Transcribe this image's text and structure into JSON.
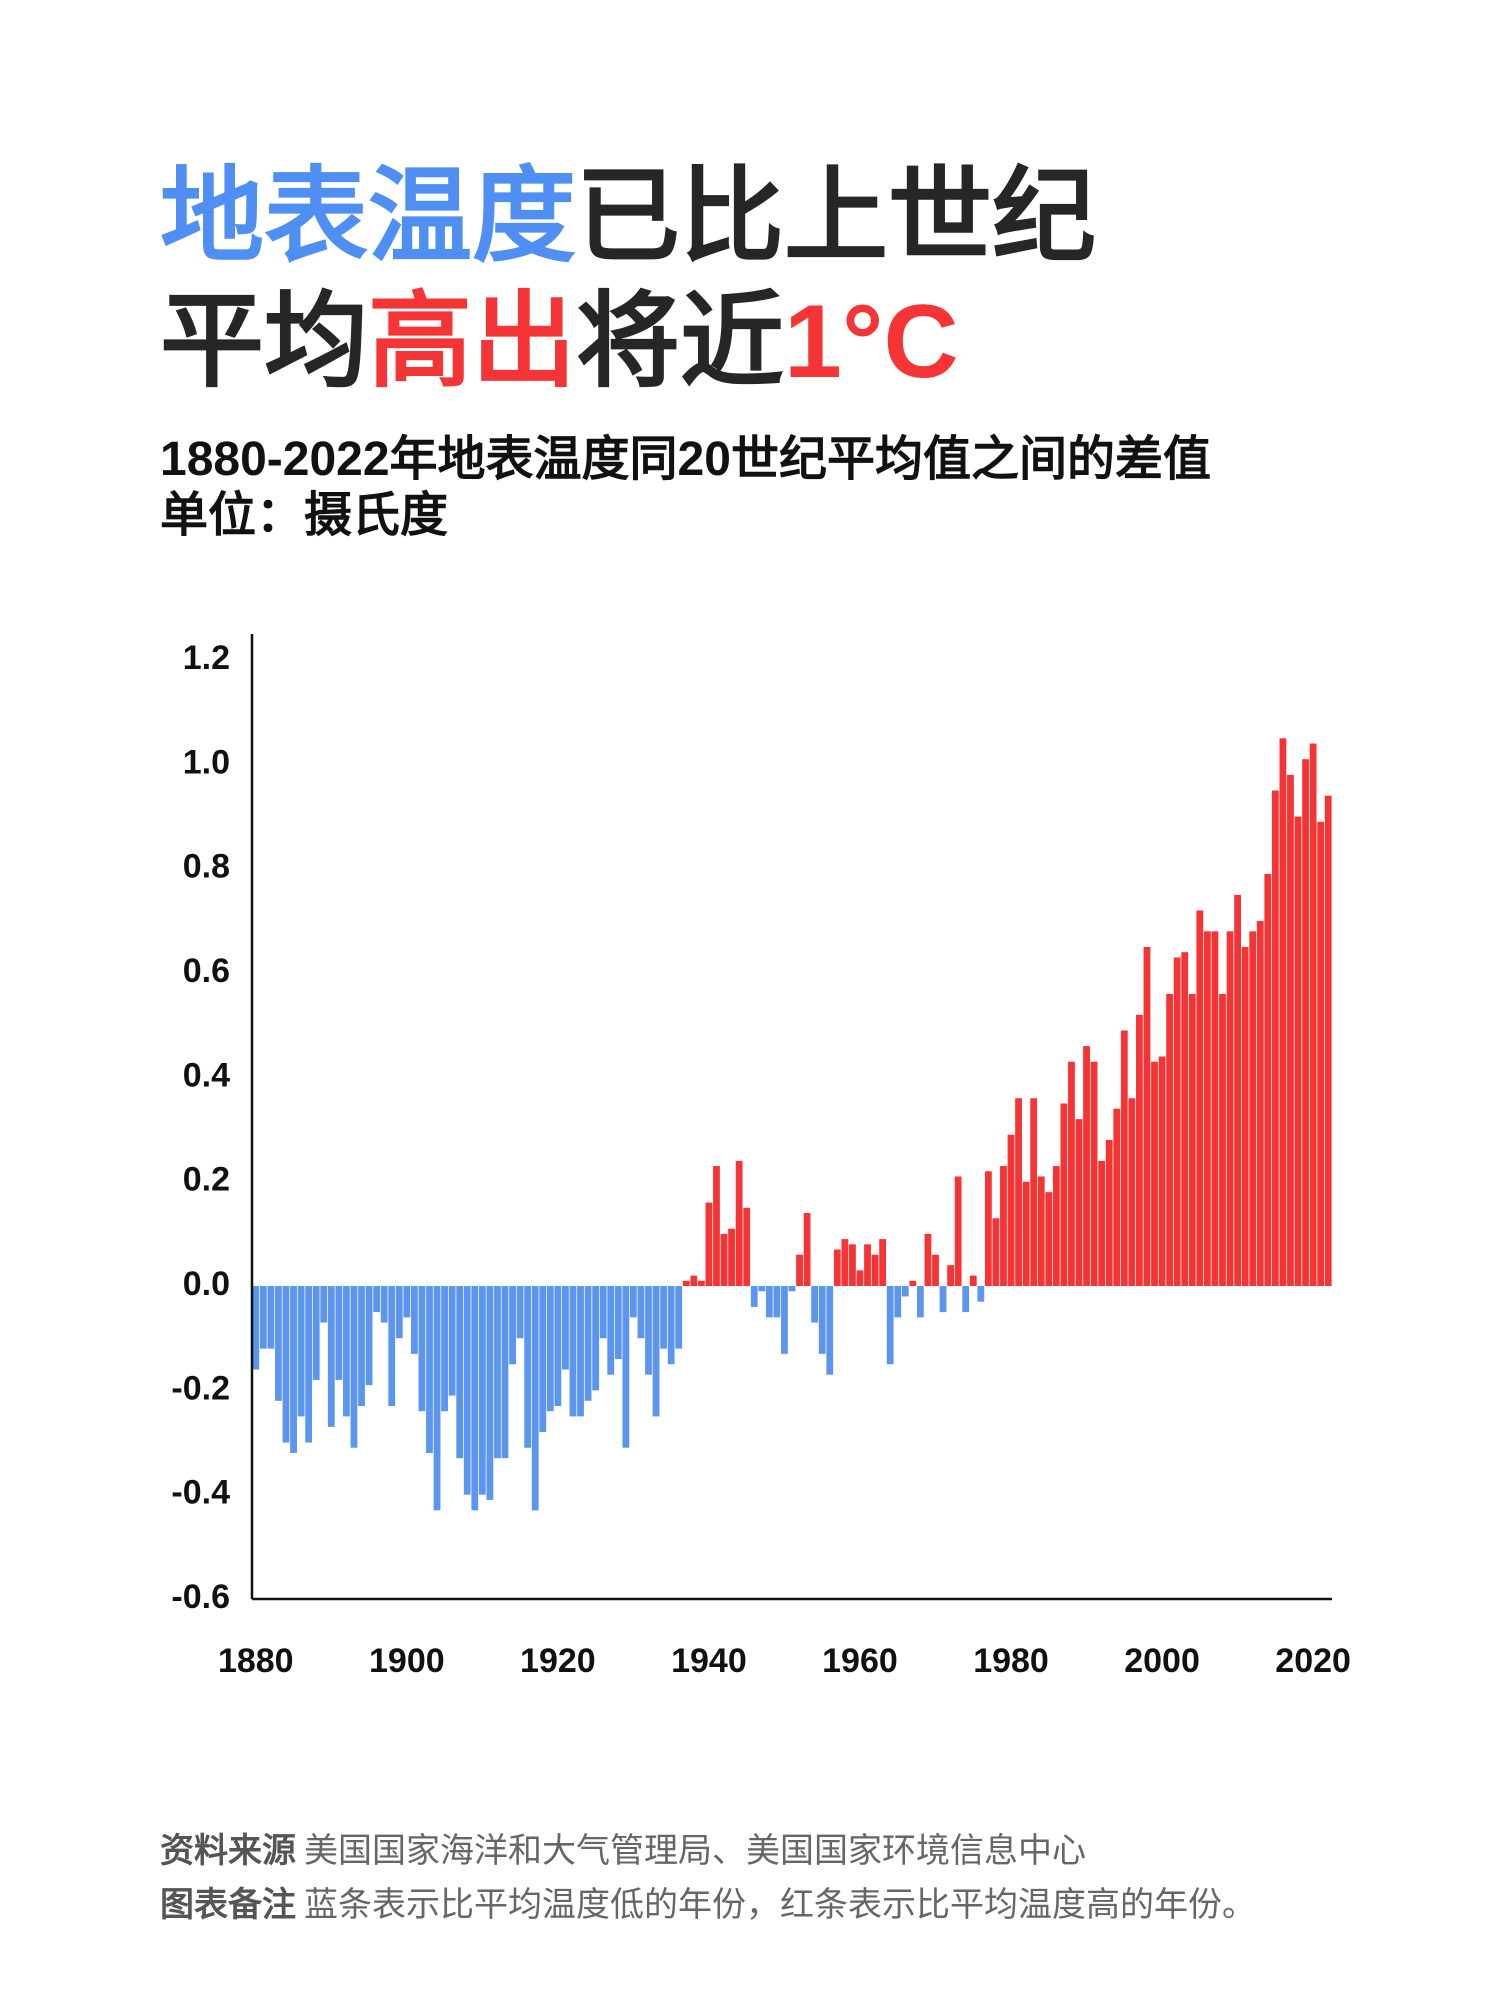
{
  "header": {
    "title_lines": [
      [
        {
          "text": "地表温度",
          "color": "#4f8ef2"
        },
        {
          "text": "已比上世纪",
          "color": "#262626"
        }
      ],
      [
        {
          "text": "平均",
          "color": "#262626"
        },
        {
          "text": "高出",
          "color": "#f53535"
        },
        {
          "text": "将近",
          "color": "#262626"
        },
        {
          "text": "1°C",
          "color": "#f53535"
        }
      ]
    ],
    "subtitle_lines": [
      "1880-2022年地表温度同20世纪平均值之间的差值",
      "单位：摄氏度"
    ]
  },
  "chart_data": {
    "type": "bar",
    "x": [
      1880,
      1881,
      1882,
      1883,
      1884,
      1885,
      1886,
      1887,
      1888,
      1889,
      1890,
      1891,
      1892,
      1893,
      1894,
      1895,
      1896,
      1897,
      1898,
      1899,
      1900,
      1901,
      1902,
      1903,
      1904,
      1905,
      1906,
      1907,
      1908,
      1909,
      1910,
      1911,
      1912,
      1913,
      1914,
      1915,
      1916,
      1917,
      1918,
      1919,
      1920,
      1921,
      1922,
      1923,
      1924,
      1925,
      1926,
      1927,
      1928,
      1929,
      1930,
      1931,
      1932,
      1933,
      1934,
      1935,
      1936,
      1937,
      1938,
      1939,
      1940,
      1941,
      1942,
      1943,
      1944,
      1945,
      1946,
      1947,
      1948,
      1949,
      1950,
      1951,
      1952,
      1953,
      1954,
      1955,
      1956,
      1957,
      1958,
      1959,
      1960,
      1961,
      1962,
      1963,
      1964,
      1965,
      1966,
      1967,
      1968,
      1969,
      1970,
      1971,
      1972,
      1973,
      1974,
      1975,
      1976,
      1977,
      1978,
      1979,
      1980,
      1981,
      1982,
      1983,
      1984,
      1985,
      1986,
      1987,
      1988,
      1989,
      1990,
      1991,
      1992,
      1993,
      1994,
      1995,
      1996,
      1997,
      1998,
      1999,
      2000,
      2001,
      2002,
      2003,
      2004,
      2005,
      2006,
      2007,
      2008,
      2009,
      2010,
      2011,
      2012,
      2013,
      2014,
      2015,
      2016,
      2017,
      2018,
      2019,
      2020,
      2021,
      2022
    ],
    "values": [
      -0.16,
      -0.12,
      -0.12,
      -0.22,
      -0.3,
      -0.32,
      -0.25,
      -0.3,
      -0.18,
      -0.07,
      -0.27,
      -0.18,
      -0.25,
      -0.31,
      -0.23,
      -0.19,
      -0.05,
      -0.07,
      -0.23,
      -0.1,
      -0.06,
      -0.13,
      -0.24,
      -0.32,
      -0.43,
      -0.24,
      -0.21,
      -0.33,
      -0.4,
      -0.43,
      -0.4,
      -0.41,
      -0.33,
      -0.33,
      -0.15,
      -0.1,
      -0.31,
      -0.43,
      -0.28,
      -0.24,
      -0.23,
      -0.16,
      -0.25,
      -0.25,
      -0.22,
      -0.2,
      -0.1,
      -0.17,
      -0.14,
      -0.31,
      -0.06,
      -0.1,
      -0.17,
      -0.25,
      -0.12,
      -0.15,
      -0.12,
      0.01,
      0.02,
      0.01,
      0.16,
      0.23,
      0.1,
      0.11,
      0.24,
      0.15,
      -0.04,
      -0.01,
      -0.06,
      -0.06,
      -0.13,
      -0.01,
      0.06,
      0.14,
      -0.07,
      -0.13,
      -0.17,
      0.07,
      0.09,
      0.08,
      0.03,
      0.08,
      0.06,
      0.09,
      -0.15,
      -0.06,
      -0.02,
      0.01,
      -0.06,
      0.1,
      0.06,
      -0.05,
      0.04,
      0.21,
      -0.05,
      0.02,
      -0.03,
      0.22,
      0.13,
      0.23,
      0.29,
      0.36,
      0.2,
      0.36,
      0.21,
      0.18,
      0.23,
      0.35,
      0.43,
      0.32,
      0.46,
      0.43,
      0.24,
      0.28,
      0.34,
      0.49,
      0.36,
      0.52,
      0.65,
      0.43,
      0.44,
      0.56,
      0.63,
      0.64,
      0.56,
      0.72,
      0.68,
      0.68,
      0.56,
      0.68,
      0.75,
      0.65,
      0.68,
      0.7,
      0.79,
      0.95,
      1.05,
      0.98,
      0.9,
      1.01,
      1.04,
      0.89,
      0.94
    ],
    "positive_color": "#f53535",
    "negative_color": "#5b95f0",
    "xlim": [
      1879.5,
      2022.5
    ],
    "xticks": [
      1880,
      1900,
      1920,
      1940,
      1960,
      1980,
      2000,
      2020
    ],
    "ylim": [
      -0.6,
      1.25
    ],
    "yticks": [
      {
        "value": -0.6,
        "label": "-0.6"
      },
      {
        "value": -0.4,
        "label": "-0.4"
      },
      {
        "value": -0.2,
        "label": "-0.2"
      },
      {
        "value": 0,
        "label": "0.0"
      },
      {
        "value": 0.2,
        "label": "0.2"
      },
      {
        "value": 0.4,
        "label": "0.4"
      },
      {
        "value": 0.6,
        "label": "0.6"
      },
      {
        "value": 0.8,
        "label": "0.8"
      },
      {
        "value": 1.0,
        "label": "1.0"
      },
      {
        "value": 1.2,
        "label": "1.2"
      }
    ],
    "grid": false
  },
  "footer": [
    {
      "label": "资料来源",
      "text": "美国国家海洋和大气管理局、美国国家环境信息中心"
    },
    {
      "label": "图表备注",
      "text": "蓝条表示比平均温度低的年份，红条表示比平均温度高的年份。"
    }
  ]
}
